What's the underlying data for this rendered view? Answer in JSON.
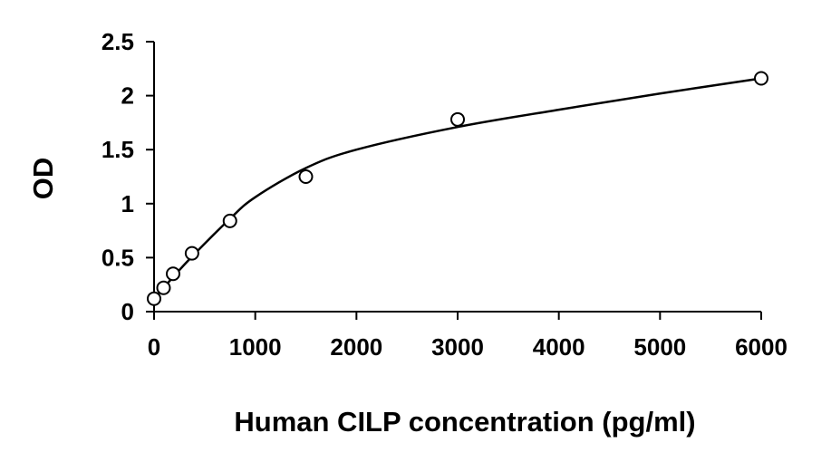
{
  "chart_data": {
    "type": "scatter",
    "xlabel": "Human CILP concentration (pg/ml)",
    "ylabel": "OD",
    "xlim": [
      0,
      6000
    ],
    "ylim": [
      0,
      2.5
    ],
    "x_ticks": [
      0,
      1000,
      2000,
      3000,
      4000,
      5000,
      6000
    ],
    "y_ticks": [
      0,
      0.5,
      1,
      1.5,
      2,
      2.5
    ],
    "x_tick_labels": [
      "0",
      "1000",
      "2000",
      "3000",
      "4000",
      "5000",
      "6000"
    ],
    "y_tick_labels": [
      "0",
      "0.5",
      "1",
      "1.5",
      "2",
      "2.5"
    ],
    "grid": false,
    "legend": "none",
    "series": [
      {
        "marker": "open-circle",
        "x": [
          0,
          94,
          188,
          375,
          750,
          1500,
          3000,
          6000
        ],
        "y": [
          0.12,
          0.22,
          0.35,
          0.54,
          0.84,
          1.25,
          1.78,
          2.16
        ]
      }
    ],
    "fit_curve": {
      "style": "smooth-line",
      "x": [
        0,
        94,
        188,
        375,
        750,
        1000,
        1500,
        2000,
        3000,
        4000,
        5000,
        6000
      ],
      "y": [
        0.13,
        0.22,
        0.32,
        0.51,
        0.86,
        1.06,
        1.33,
        1.5,
        1.71,
        1.87,
        2.02,
        2.16
      ]
    },
    "colors": {
      "line": "#000000",
      "marker_stroke": "#000000",
      "marker_fill": "#ffffff",
      "background": "#ffffff"
    }
  }
}
